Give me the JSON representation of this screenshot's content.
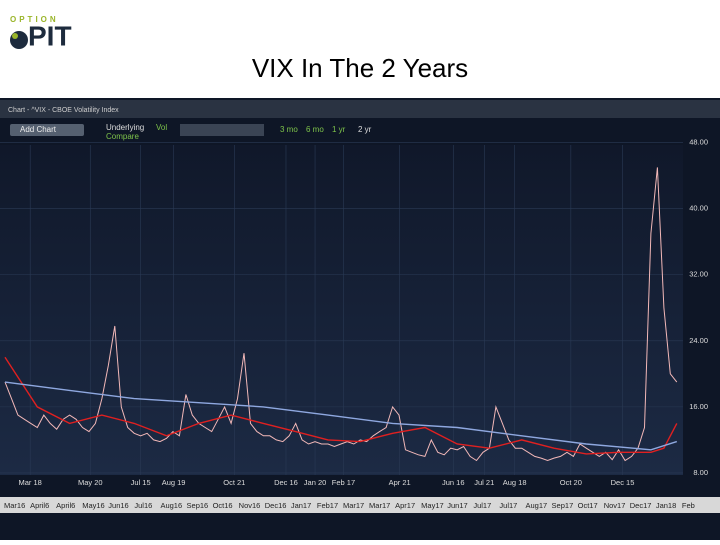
{
  "logo": {
    "top": "OPTION",
    "main": "PIT"
  },
  "title": "VIX In The 2 Years",
  "toolbar": {
    "window_title": "Chart - ^VIX - CBOE Volatility Index",
    "add_chart": "Add Chart",
    "underlying": "Underlying",
    "vol": "Vol",
    "compare": "Compare",
    "ranges": [
      "3 mo",
      "6 mo",
      "1 yr",
      "2 yr"
    ]
  },
  "timeline": [
    "Mar16",
    "April6",
    "April6",
    "May16",
    "Jun16",
    "Jul16",
    "Aug16",
    "Sep16",
    "Oct16",
    "Nov16",
    "Dec16",
    "Jan17",
    "Feb17",
    "Mar17",
    "Mar17",
    "Apr17",
    "May17",
    "Jun17",
    "Jul17",
    "Jul17",
    "Aug17",
    "Sep17",
    "Oct17",
    "Nov17",
    "Dec17",
    "Jan18",
    "Feb"
  ],
  "chart_data": {
    "type": "line",
    "xlim": [
      0,
      104.5
    ],
    "xticks": [
      {
        "value": 3.9,
        "label": "Mar 18"
      },
      {
        "value": 13.2,
        "label": "May 20"
      },
      {
        "value": 21,
        "label": "Jul 15"
      },
      {
        "value": 26.1,
        "label": "Aug 19"
      },
      {
        "value": 35.5,
        "label": "Oct 21"
      },
      {
        "value": 43.5,
        "label": "Dec 16"
      },
      {
        "value": 48,
        "label": "Jan 20"
      },
      {
        "value": 52.4,
        "label": "Feb 17"
      },
      {
        "value": 61.1,
        "label": "Apr 21"
      },
      {
        "value": 69.4,
        "label": "Jun 16"
      },
      {
        "value": 74.2,
        "label": "Jul 21"
      },
      {
        "value": 78.9,
        "label": "Aug 18"
      },
      {
        "value": 87.6,
        "label": "Oct 20"
      },
      {
        "value": 95.6,
        "label": "Dec 15"
      }
    ],
    "ylim": [
      7.75,
      50.5
    ],
    "yticks": [
      {
        "value": 8,
        "label": "8.00"
      },
      {
        "value": 16,
        "label": "16.00"
      },
      {
        "value": 24,
        "label": "24.00"
      },
      {
        "value": 32,
        "label": "32.00"
      },
      {
        "value": 40,
        "label": "40.00"
      },
      {
        "value": 48,
        "label": "48.00"
      }
    ],
    "grid": true,
    "series": [
      {
        "color": "#f2b8b8",
        "values": [
          19,
          17,
          15,
          14.5,
          14,
          13.5,
          15,
          14,
          13.3,
          14.5,
          15,
          14.5,
          13.5,
          13,
          14,
          17,
          21,
          25.8,
          16,
          13.5,
          12.8,
          12.5,
          12.8,
          12,
          11.8,
          12.2,
          13,
          12.5,
          17.5,
          15,
          14,
          13.5,
          13,
          14.5,
          16,
          14,
          17,
          22.5,
          14,
          13,
          12.5,
          12.5,
          12,
          11.8,
          12.5,
          14,
          12,
          11.5,
          11.8,
          11.5,
          11.5,
          11.2,
          11.5,
          11.8,
          11.5,
          12,
          11.8,
          12.5,
          13,
          13.5,
          16,
          15,
          10.8,
          10.5,
          10.2,
          10,
          12,
          10.5,
          10.2,
          11,
          10.8,
          11.2,
          10,
          9.5,
          10.5,
          11,
          16,
          14,
          12,
          11,
          11,
          10.5,
          10,
          9.8,
          9.5,
          9.8,
          10,
          10.5,
          10,
          11.5,
          11,
          10.5,
          10,
          10.5,
          9.6,
          10.8,
          9.5,
          10,
          11,
          13.5,
          37,
          45,
          28,
          20,
          19
        ]
      },
      {
        "color": "#e02020",
        "x": [
          0,
          5,
          10,
          15,
          20,
          25,
          30,
          35,
          40,
          45,
          50,
          55,
          60,
          65,
          70,
          75,
          80,
          85,
          90,
          95,
          100,
          102,
          104
        ],
        "values": [
          22,
          16,
          14,
          15,
          14,
          12.5,
          14,
          15,
          14,
          13,
          12,
          11.8,
          12.8,
          13.5,
          11.5,
          11,
          12,
          11,
          10.3,
          10.5,
          10.5,
          11,
          14
        ]
      },
      {
        "color": "#8fa8e0",
        "x": [
          0,
          10,
          20,
          30,
          40,
          50,
          60,
          70,
          80,
          90,
          100,
          104
        ],
        "values": [
          19,
          18,
          17,
          16.5,
          16,
          15,
          14,
          13.5,
          12.5,
          11.5,
          10.8,
          11.8
        ]
      }
    ]
  }
}
